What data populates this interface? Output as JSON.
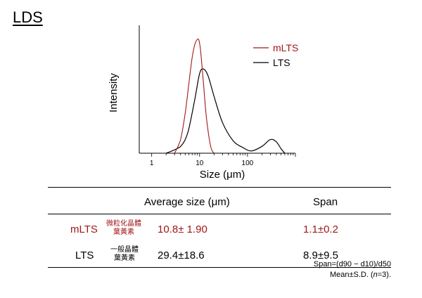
{
  "slide": {
    "title": "LDS"
  },
  "colors": {
    "mLTS": "#a01818",
    "LTS": "#000000"
  },
  "chart_data": {
    "type": "line",
    "xlabel": "Size (μm)",
    "ylabel": "Intensity",
    "xscale": "log",
    "xlim": [
      0.55,
      1000
    ],
    "x_ticks": [
      1,
      10,
      100
    ],
    "tick_labels": [
      "1",
      "10",
      "100"
    ],
    "grid": false,
    "legend_position": "top-right",
    "series": [
      {
        "name": "mLTS",
        "x": [
          3,
          4,
          5,
          6,
          7,
          8,
          9,
          9.7,
          10.5,
          12,
          14,
          17,
          20
        ],
        "y": [
          0,
          0.12,
          0.35,
          0.62,
          0.84,
          0.96,
          1.0,
          0.99,
          0.9,
          0.62,
          0.3,
          0.06,
          0
        ]
      },
      {
        "name": "LTS",
        "x": [
          2,
          3,
          4,
          5,
          6,
          8,
          10,
          12,
          15,
          20,
          30,
          50,
          80,
          120,
          200,
          300,
          400,
          500,
          600
        ],
        "y": [
          0,
          0.03,
          0.06,
          0.12,
          0.22,
          0.48,
          0.7,
          0.74,
          0.68,
          0.5,
          0.27,
          0.11,
          0.05,
          0.02,
          0.06,
          0.12,
          0.1,
          0.04,
          0
        ]
      }
    ]
  },
  "table": {
    "headers": [
      "Average size (μm)",
      "Span"
    ],
    "rows": [
      {
        "sample": "mLTS",
        "note_line1": "微粒化晶體",
        "note_line2": "葉黃素",
        "average": "10.8± 1.90",
        "span": "1.1±0.2"
      },
      {
        "sample": "LTS",
        "note_line1": "一般晶體",
        "note_line2": "葉黃素",
        "average": "29.4±18.6",
        "span": "8.9±9.5"
      }
    ],
    "footnote_1": "Span=(d90 − d10)/d50",
    "footnote_2_prefix": "Mean±S.D. (",
    "footnote_2_n": "n",
    "footnote_2_suffix": "=3)."
  }
}
